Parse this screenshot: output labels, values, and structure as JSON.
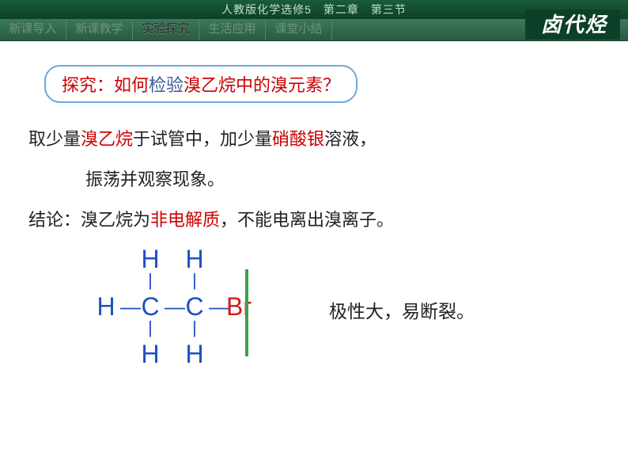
{
  "header": {
    "breadcrumb": "人教版化学选修5　第二章　第三节",
    "title_right": "卤代烃"
  },
  "nav": {
    "items": [
      {
        "label": "新课导入",
        "active": false
      },
      {
        "label": "新课教学",
        "active": false
      },
      {
        "label": "实验探究",
        "active": true
      },
      {
        "label": "生活应用",
        "active": false
      },
      {
        "label": "课堂小结",
        "active": false
      }
    ]
  },
  "inquiry": {
    "prefix": "探究：如何",
    "mid1": "检验",
    "mid2": "溴乙烷",
    "suffix": "中的溴元素？"
  },
  "lines": {
    "l1_a": "取少量",
    "l1_b": "溴乙烷",
    "l1_c": "于试管中，加少量",
    "l1_d": "硝酸银",
    "l1_e": "溶液，",
    "l2": "振荡并观察现象。",
    "l3_a": "结论：溴乙烷为",
    "l3_b": "非电解质",
    "l3_c": "，不能电离出溴离子。"
  },
  "molecule": {
    "H": "H",
    "C": "C",
    "Br": "Br",
    "hbond": "—",
    "vbond": "|",
    "note": "极性大，易断裂。"
  },
  "colors": {
    "header_bg": "#1a5c3a",
    "nav_bg": "#3a7a5a",
    "red": "#cc0000",
    "blue": "#2050c0",
    "green": "#3aa050",
    "border_blue": "#6fa8d8"
  }
}
